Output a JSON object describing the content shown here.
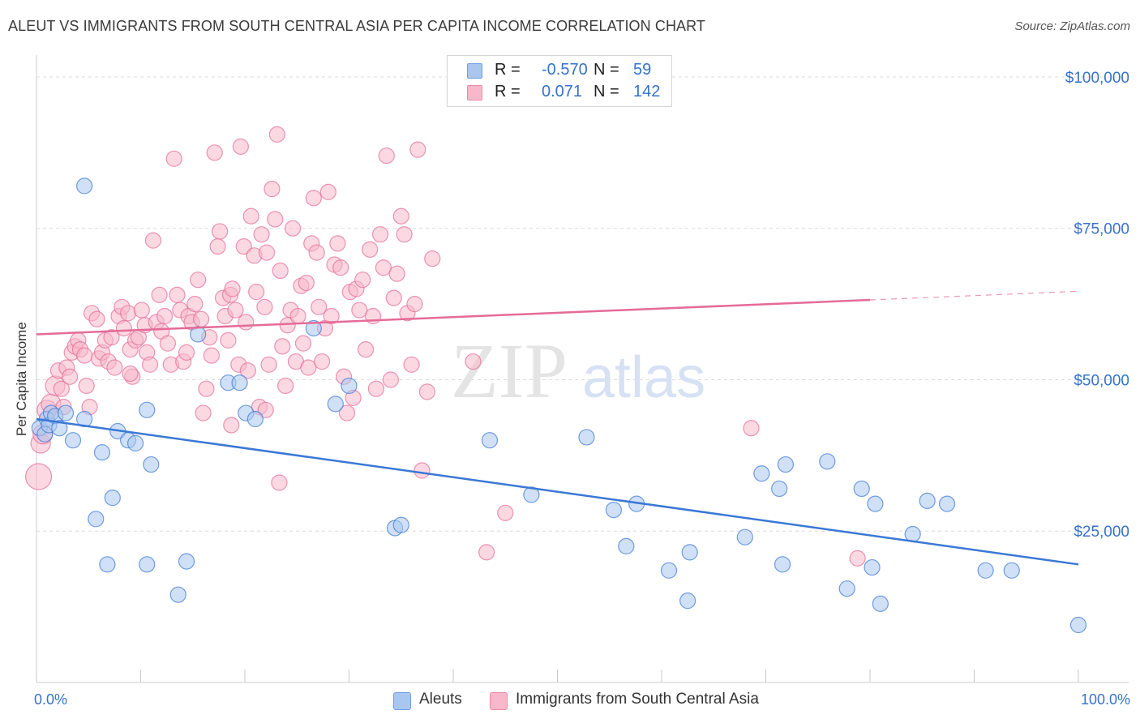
{
  "title": "ALEUT VS IMMIGRANTS FROM SOUTH CENTRAL ASIA PER CAPITA INCOME CORRELATION CHART",
  "source": "Source: ZipAtlas.com",
  "watermark": {
    "zip": "ZIP",
    "atlas": "atlas"
  },
  "legend": {
    "rows": [
      {
        "r_label": "R =",
        "r_value": "-0.570",
        "n_label": "N =",
        "n_value": "59",
        "color": "#a9c6ef",
        "stroke": "#6f9fe0"
      },
      {
        "r_label": "R =",
        "r_value": "0.071",
        "n_label": "N =",
        "n_value": "142",
        "color": "#f7b8cb",
        "stroke": "#ec8aa8"
      }
    ]
  },
  "chart_data": {
    "type": "scatter",
    "title": "ALEUT VS IMMIGRANTS FROM SOUTH CENTRAL ASIA PER CAPITA INCOME CORRELATION CHART",
    "xlabel": "",
    "ylabel": "Per Capita Income",
    "x_tick_labels": [
      "0.0%",
      "100.0%"
    ],
    "y_tick_labels": [
      "$100,000",
      "$75,000",
      "$50,000",
      "$25,000"
    ],
    "y_ticks": [
      100000,
      75000,
      50000,
      25000
    ],
    "xlim": [
      0,
      100
    ],
    "ylim": [
      0,
      102000
    ],
    "grid": true,
    "legend_position": "top-center",
    "colors": {
      "aleut": "#3a78d6",
      "immigrants": "#e46b97",
      "axis_text": "#3672c9"
    },
    "series": [
      {
        "name": "Aleuts",
        "color": "#3a78d6",
        "fill": "#a9c6ef",
        "trend": {
          "x": [
            0,
            100
          ],
          "y": [
            43500,
            19500
          ],
          "dashed_from": null
        },
        "points": [
          [
            0.3,
            42000
          ],
          [
            0.8,
            41000
          ],
          [
            1.0,
            43500
          ],
          [
            1.2,
            42500
          ],
          [
            1.4,
            44500
          ],
          [
            1.8,
            44000
          ],
          [
            2.2,
            42000
          ],
          [
            2.8,
            44500
          ],
          [
            3.5,
            40000
          ],
          [
            4.6,
            82000
          ],
          [
            4.6,
            43500
          ],
          [
            5.7,
            27000
          ],
          [
            6.3,
            38000
          ],
          [
            6.8,
            19500
          ],
          [
            7.3,
            30500
          ],
          [
            7.8,
            41500
          ],
          [
            8.8,
            40000
          ],
          [
            9.5,
            39500
          ],
          [
            10.6,
            45000
          ],
          [
            10.6,
            19500
          ],
          [
            11.0,
            36000
          ],
          [
            13.6,
            14500
          ],
          [
            14.4,
            20000
          ],
          [
            15.5,
            57500
          ],
          [
            18.4,
            49500
          ],
          [
            19.5,
            49500
          ],
          [
            20.1,
            44500
          ],
          [
            21.0,
            43500
          ],
          [
            26.6,
            58500
          ],
          [
            28.7,
            46000
          ],
          [
            30.0,
            49000
          ],
          [
            34.4,
            25500
          ],
          [
            35.0,
            26000
          ],
          [
            43.5,
            40000
          ],
          [
            47.5,
            31000
          ],
          [
            52.8,
            40500
          ],
          [
            55.4,
            28500
          ],
          [
            56.6,
            22500
          ],
          [
            57.6,
            29500
          ],
          [
            60.7,
            18500
          ],
          [
            62.5,
            13500
          ],
          [
            62.7,
            21500
          ],
          [
            68.0,
            24000
          ],
          [
            69.6,
            34500
          ],
          [
            71.3,
            32000
          ],
          [
            71.6,
            19500
          ],
          [
            71.9,
            36000
          ],
          [
            75.9,
            36500
          ],
          [
            77.8,
            15500
          ],
          [
            79.2,
            32000
          ],
          [
            80.2,
            19000
          ],
          [
            80.5,
            29500
          ],
          [
            81.0,
            13000
          ],
          [
            84.1,
            24500
          ],
          [
            85.5,
            30000
          ],
          [
            87.4,
            29500
          ],
          [
            91.1,
            18500
          ],
          [
            93.6,
            18500
          ],
          [
            100.0,
            9500
          ]
        ]
      },
      {
        "name": "Immigrants from South Central Asia",
        "color": "#e46b97",
        "fill": "#f7b8cb",
        "trend": {
          "x": [
            0,
            100
          ],
          "y": [
            57500,
            64600
          ],
          "dashed_from": 80
        },
        "points": [
          [
            0.2,
            34000
          ],
          [
            0.4,
            39500
          ],
          [
            0.6,
            41000
          ],
          [
            1.0,
            45000
          ],
          [
            1.4,
            46000
          ],
          [
            1.8,
            49000
          ],
          [
            2.1,
            51500
          ],
          [
            2.4,
            48500
          ],
          [
            2.9,
            52000
          ],
          [
            3.2,
            50500
          ],
          [
            3.4,
            54500
          ],
          [
            3.7,
            55500
          ],
          [
            4.0,
            56500
          ],
          [
            4.2,
            55000
          ],
          [
            4.6,
            54000
          ],
          [
            4.8,
            49000
          ],
          [
            5.1,
            45500
          ],
          [
            5.3,
            61000
          ],
          [
            5.8,
            60000
          ],
          [
            6.0,
            53500
          ],
          [
            6.3,
            54500
          ],
          [
            6.6,
            56500
          ],
          [
            6.9,
            53000
          ],
          [
            7.2,
            57000
          ],
          [
            7.5,
            52000
          ],
          [
            7.9,
            60500
          ],
          [
            8.2,
            62000
          ],
          [
            8.4,
            58500
          ],
          [
            8.8,
            61000
          ],
          [
            9.0,
            55000
          ],
          [
            9.2,
            50500
          ],
          [
            9.5,
            56500
          ],
          [
            9.8,
            57000
          ],
          [
            10.1,
            61500
          ],
          [
            10.4,
            59000
          ],
          [
            10.6,
            54500
          ],
          [
            10.9,
            52500
          ],
          [
            11.2,
            73000
          ],
          [
            11.5,
            59500
          ],
          [
            11.8,
            64000
          ],
          [
            12.0,
            58000
          ],
          [
            12.3,
            60500
          ],
          [
            12.6,
            56000
          ],
          [
            12.9,
            52500
          ],
          [
            13.2,
            86500
          ],
          [
            13.5,
            64000
          ],
          [
            13.8,
            61500
          ],
          [
            14.1,
            53000
          ],
          [
            14.4,
            54500
          ],
          [
            14.6,
            60500
          ],
          [
            14.9,
            59500
          ],
          [
            15.2,
            62500
          ],
          [
            15.5,
            66500
          ],
          [
            15.8,
            60000
          ],
          [
            16.0,
            44500
          ],
          [
            16.3,
            48500
          ],
          [
            16.6,
            57000
          ],
          [
            16.8,
            54000
          ],
          [
            17.1,
            87500
          ],
          [
            17.4,
            72000
          ],
          [
            17.6,
            74500
          ],
          [
            17.9,
            63500
          ],
          [
            18.1,
            60500
          ],
          [
            18.4,
            56500
          ],
          [
            18.6,
            64000
          ],
          [
            18.8,
            65000
          ],
          [
            19.1,
            61500
          ],
          [
            19.4,
            52500
          ],
          [
            19.6,
            88500
          ],
          [
            19.9,
            72000
          ],
          [
            20.1,
            59500
          ],
          [
            20.3,
            51500
          ],
          [
            20.6,
            77000
          ],
          [
            20.9,
            70500
          ],
          [
            21.1,
            64500
          ],
          [
            21.4,
            45500
          ],
          [
            21.6,
            74000
          ],
          [
            21.9,
            62000
          ],
          [
            22.1,
            71000
          ],
          [
            22.3,
            52500
          ],
          [
            22.6,
            81500
          ],
          [
            22.9,
            76500
          ],
          [
            23.1,
            90500
          ],
          [
            23.4,
            68000
          ],
          [
            23.6,
            55500
          ],
          [
            23.9,
            49000
          ],
          [
            24.1,
            59000
          ],
          [
            24.4,
            61500
          ],
          [
            24.6,
            75000
          ],
          [
            24.9,
            53000
          ],
          [
            25.1,
            60500
          ],
          [
            25.4,
            65500
          ],
          [
            25.6,
            56000
          ],
          [
            25.9,
            66000
          ],
          [
            26.1,
            52000
          ],
          [
            26.4,
            72500
          ],
          [
            26.6,
            80000
          ],
          [
            26.9,
            71000
          ],
          [
            27.1,
            62000
          ],
          [
            27.4,
            53000
          ],
          [
            27.7,
            58500
          ],
          [
            28.0,
            81000
          ],
          [
            28.3,
            60500
          ],
          [
            28.6,
            69000
          ],
          [
            28.9,
            72500
          ],
          [
            29.2,
            68500
          ],
          [
            29.5,
            50500
          ],
          [
            29.8,
            44500
          ],
          [
            30.1,
            64500
          ],
          [
            30.4,
            47000
          ],
          [
            30.7,
            65000
          ],
          [
            31.0,
            61500
          ],
          [
            31.3,
            66500
          ],
          [
            31.6,
            55000
          ],
          [
            32.0,
            71500
          ],
          [
            32.3,
            60500
          ],
          [
            32.6,
            48500
          ],
          [
            33.0,
            74000
          ],
          [
            33.3,
            68500
          ],
          [
            33.6,
            87000
          ],
          [
            34.0,
            50000
          ],
          [
            34.3,
            63500
          ],
          [
            34.6,
            67500
          ],
          [
            35.0,
            77000
          ],
          [
            35.3,
            74000
          ],
          [
            35.6,
            61000
          ],
          [
            36.0,
            52500
          ],
          [
            36.3,
            62500
          ],
          [
            36.6,
            88000
          ],
          [
            37.0,
            35000
          ],
          [
            37.5,
            48000
          ],
          [
            38.0,
            70000
          ],
          [
            41.9,
            53000
          ],
          [
            43.2,
            21500
          ],
          [
            45.0,
            28000
          ],
          [
            9.0,
            51000
          ],
          [
            2.6,
            45500
          ],
          [
            22.0,
            45000
          ],
          [
            68.6,
            42000
          ],
          [
            78.8,
            20500
          ],
          [
            23.3,
            33000
          ],
          [
            18.7,
            42500
          ]
        ]
      }
    ]
  },
  "bottom_legend": [
    "Aleuts",
    "Immigrants from South Central Asia"
  ]
}
